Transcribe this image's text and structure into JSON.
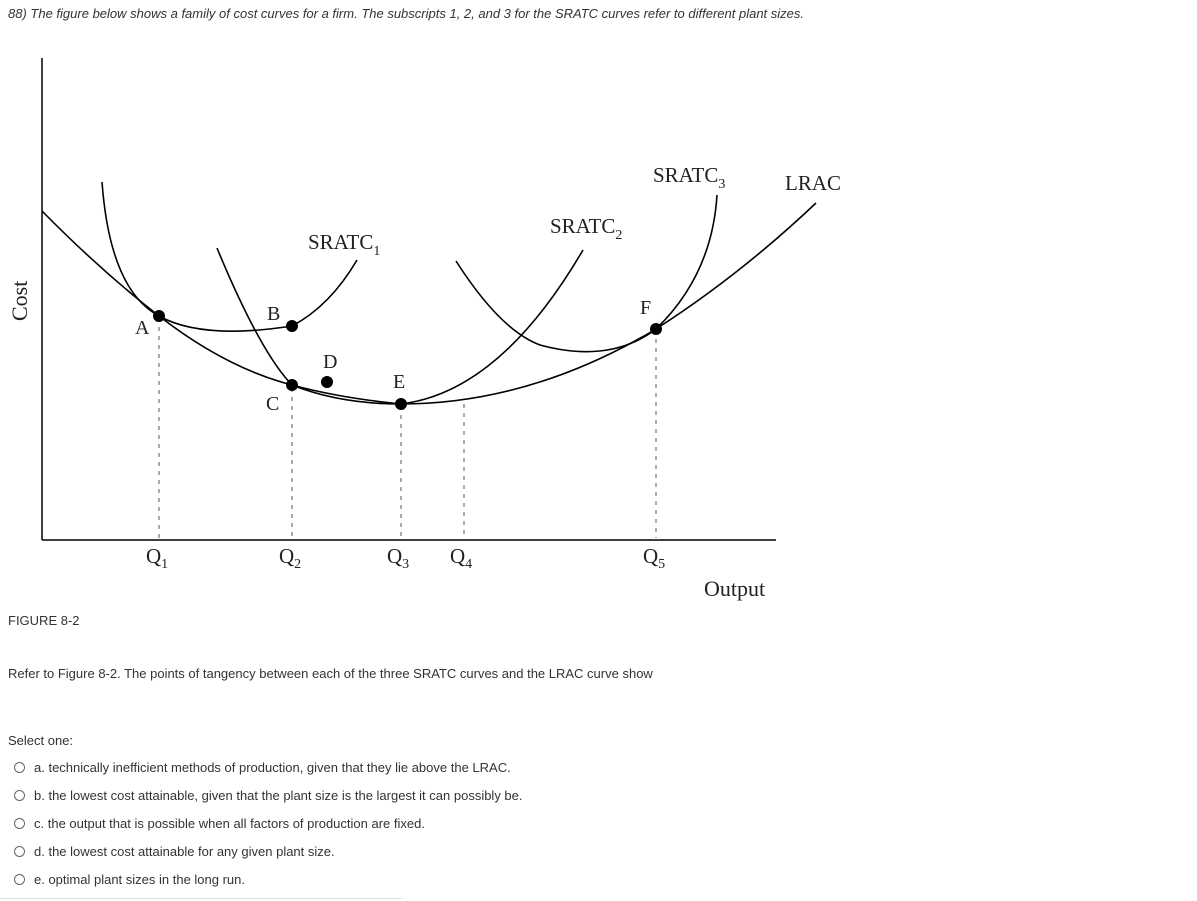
{
  "question": {
    "number": "88)",
    "text": "The figure below shows a family of cost curves for a firm. The subscripts 1, 2, and 3 for the SRATC curves refer to different plant sizes."
  },
  "figure": {
    "y_axis_label": "Cost",
    "x_axis_label": "Output",
    "curves": {
      "sratc1": {
        "base": "SRATC",
        "sub": "1"
      },
      "sratc2": {
        "base": "SRATC",
        "sub": "2"
      },
      "sratc3": {
        "base": "SRATC",
        "sub": "3"
      },
      "lrac": "LRAC"
    },
    "points": [
      "A",
      "B",
      "C",
      "D",
      "E",
      "F"
    ],
    "quantities": [
      {
        "base": "Q",
        "sub": "1"
      },
      {
        "base": "Q",
        "sub": "2"
      },
      {
        "base": "Q",
        "sub": "3"
      },
      {
        "base": "Q",
        "sub": "4"
      },
      {
        "base": "Q",
        "sub": "5"
      }
    ]
  },
  "caption": "FIGURE 8-2",
  "prompt": "Refer to Figure 8-2. The points of tangency between each of the three SRATC curves and the LRAC curve show",
  "select_label": "Select one:",
  "options": [
    {
      "label": "a. technically inefficient methods of production, given that they lie above the LRAC."
    },
    {
      "label": "b. the lowest cost attainable, given that the plant size is the largest it can possibly be."
    },
    {
      "label": "c. the output that is possible when all factors of production are fixed."
    },
    {
      "label": "d. the lowest cost attainable for any given plant size."
    },
    {
      "label": "e. optimal plant sizes in the long run."
    }
  ]
}
